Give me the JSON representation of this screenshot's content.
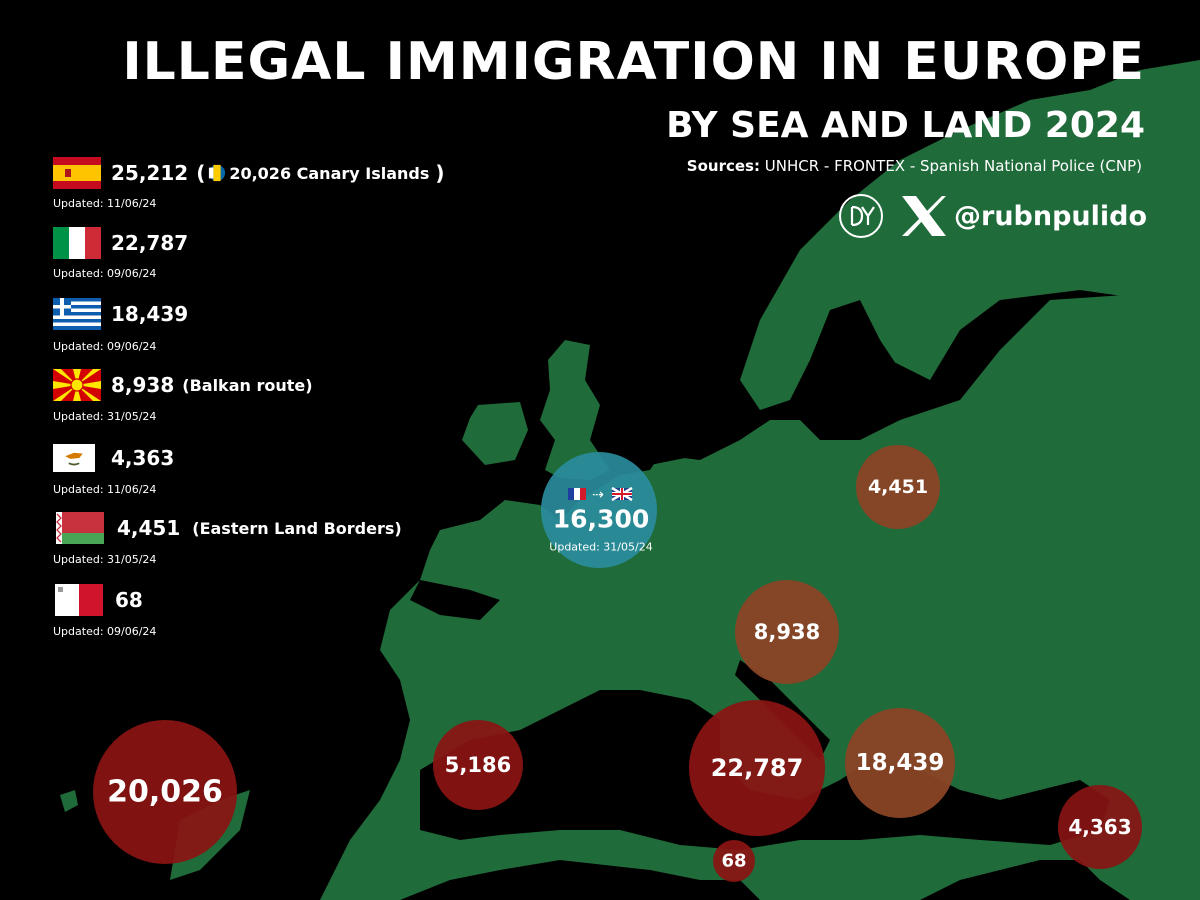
{
  "header": {
    "title": "ILLEGAL IMMIGRATION IN EUROPE",
    "subtitle": "BY SEA AND LAND 2024",
    "sources_label": "Sources:",
    "sources_text": "UNHCR - FRONTEX - Spanish National Police (CNP)",
    "handle": "@rubnpulido"
  },
  "colors": {
    "background": "#000000",
    "land": "#1f6b3a",
    "bubble_brown": "#8a4526",
    "bubble_red": "#8b1414",
    "bubble_teal": "#2a8ea0"
  },
  "legend": [
    {
      "country": "Spain",
      "flag": "spain-flag",
      "value": "25,212",
      "note_open": "(",
      "note": "20,026 Canary Islands",
      "note_close": ")",
      "updated": "Updated: 11/06/24"
    },
    {
      "country": "Italy",
      "flag": "italy-flag",
      "value": "22,787",
      "updated": "Updated: 09/06/24"
    },
    {
      "country": "Greece",
      "flag": "greece-flag",
      "value": "18,439",
      "updated": "Updated: 09/06/24"
    },
    {
      "country": "North Macedonia",
      "flag": "north-macedonia-flag",
      "value": "8,938",
      "note": "(Balkan route)",
      "updated": "Updated: 31/05/24"
    },
    {
      "country": "Cyprus",
      "flag": "cyprus-flag",
      "value": "4,363",
      "updated": "Updated: 11/06/24"
    },
    {
      "country": "Belarus",
      "flag": "belarus-flag",
      "value": "4,451",
      "note": "(Eastern Land Borders)",
      "updated": "Updated: 31/05/24"
    },
    {
      "country": "Malta",
      "flag": "malta-flag",
      "value": "68",
      "updated": "Updated: 09/06/24"
    }
  ],
  "map_bubbles": [
    {
      "id": "canary",
      "value": "20,026"
    },
    {
      "id": "spain-mainland",
      "value": "5,186"
    },
    {
      "id": "italy",
      "value": "22,787"
    },
    {
      "id": "greece",
      "value": "18,439"
    },
    {
      "id": "cyprus",
      "value": "4,363"
    },
    {
      "id": "malta",
      "value": "68"
    },
    {
      "id": "balkan",
      "value": "8,938"
    },
    {
      "id": "eastern-border",
      "value": "4,451"
    },
    {
      "id": "channel",
      "value": "16,300",
      "updated": "Updated: 31/05/24"
    }
  ]
}
